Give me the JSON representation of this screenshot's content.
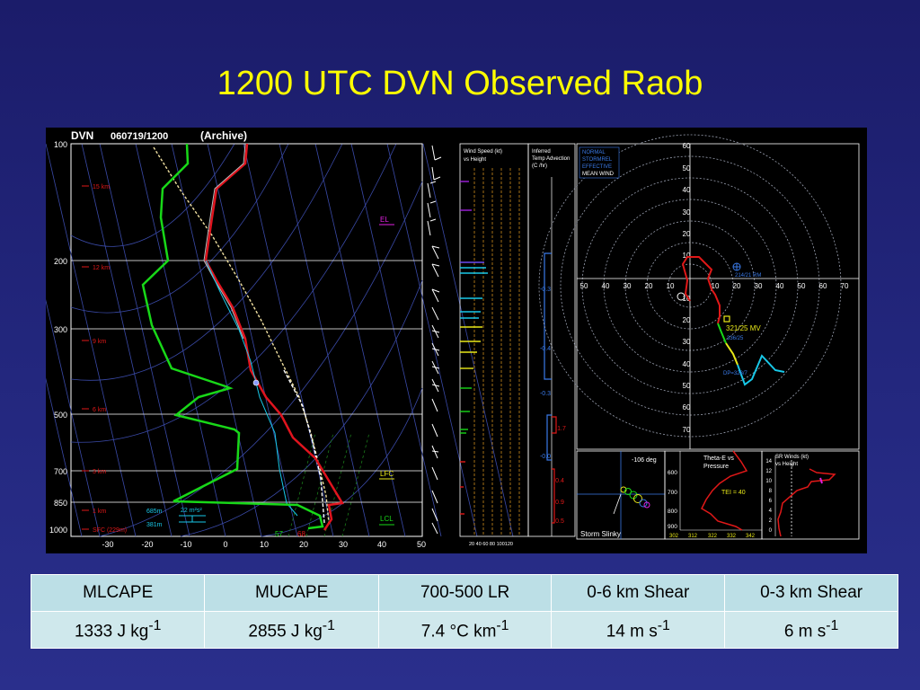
{
  "slide": {
    "title": "1200 UTC DVN Observed Raob"
  },
  "skewt": {
    "station": "DVN",
    "datetime": "060719/1200",
    "archive": "(Archive)",
    "pressure_labels": [
      "100",
      "200",
      "300",
      "500",
      "700",
      "850",
      "1000"
    ],
    "height_labels": [
      "15 km",
      "12 km",
      "9 km",
      "6 km",
      "3 km",
      "1 km",
      "SFC (229m)"
    ],
    "temp_labels": [
      "-30",
      "-20",
      "-10",
      "0",
      "10",
      "20",
      "30",
      "40",
      "50"
    ],
    "level_labels": {
      "el": "EL",
      "lfc": "LFC",
      "lcl": "LCL"
    },
    "srh_labels": {
      "h1": "685m",
      "h2": "381m",
      "srh": "22 m²s²"
    },
    "sfc_values": {
      "td": "57",
      "t": "68"
    }
  },
  "wind_panel": {
    "title1": "Wind Speed (kt)",
    "title2": "vs Height",
    "scale": "20 40 60 80 100120"
  },
  "temp_adv": {
    "title1": "Inferred",
    "title2": "Temp Advection",
    "title3": "(C /hr)",
    "values": [
      "-0.3",
      "-0.4",
      "-0.3",
      "1.7",
      "-0.0",
      "0.4",
      "0.9",
      "0.5"
    ]
  },
  "hodograph": {
    "legend": [
      "NORMAL",
      "STORMREL",
      "EFFECTIVE",
      "MEAN WIND"
    ],
    "rings": [
      "60",
      "50",
      "40",
      "30",
      "20",
      "10",
      "0",
      "10",
      "20",
      "30",
      "40",
      "50",
      "60",
      "70"
    ],
    "axis_labels": [
      "50",
      "40",
      "30",
      "20",
      "10",
      "0",
      "10",
      "20",
      "30",
      "40",
      "50",
      "60",
      "70"
    ],
    "mv_label": "321/25 MV",
    "rm_label": "214/21 RM",
    "dp_label": "DP=328/7",
    "lm_label": "336/25"
  },
  "storm_slinky": {
    "deg": "-106 deg",
    "label": "Storm Slinky"
  },
  "theta_e": {
    "title1": "Theta-E vs",
    "title2": "Pressure",
    "tei": "TEI = 40",
    "plabels": [
      "600",
      "700",
      "800",
      "900"
    ],
    "xlabels": [
      "302",
      "312",
      "322",
      "332",
      "342"
    ]
  },
  "sr_winds": {
    "title1": "SR Winds (kt)",
    "title2": "vs Height",
    "ylabels": [
      "14",
      "12",
      "10",
      "8",
      "6",
      "4",
      "2",
      "0"
    ]
  },
  "table": {
    "headers": [
      "MLCAPE",
      "MUCAPE",
      "700-500 LR",
      "0-6 km Shear",
      "0-3 km Shear"
    ],
    "values": [
      {
        "num": "1333 J kg",
        "sup": "-1"
      },
      {
        "num": "2855 J kg",
        "sup": "-1"
      },
      {
        "num": "7.4 °C km",
        "sup": "-1"
      },
      {
        "num": "14 m s",
        "sup": "-1"
      },
      {
        "num": "6 m s",
        "sup": "-1"
      }
    ]
  },
  "colors": {
    "background": "#1e2172",
    "title": "#ffff00",
    "temp_trace": "#e0141e",
    "dewpoint_trace": "#18d818",
    "hodo_cyan": "#18c8e8"
  }
}
